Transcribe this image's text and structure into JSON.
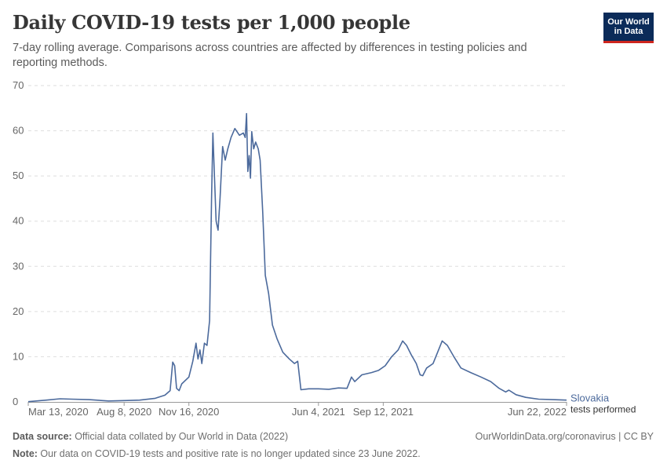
{
  "header": {
    "title": "Daily COVID-19 tests per 1,000 people",
    "subtitle": "7-day rolling average. Comparisons across countries are affected by differences in testing policies and reporting methods."
  },
  "logo": {
    "line1": "Our World",
    "line2": "in Data"
  },
  "footer": {
    "source_label": "Data source:",
    "source_text": " Official data collated by Our World in Data (2022)",
    "url": "OurWorldinData.org/coronavirus | CC BY",
    "note_label": "Note:",
    "note_text": " Our data on COVID-19 tests and positive rate is no longer updated since 23 June 2022."
  },
  "chart_data": {
    "type": "line",
    "title": "Daily COVID-19 tests per 1,000 people",
    "ylim": [
      0,
      70
    ],
    "y_ticks": [
      0,
      10,
      20,
      30,
      40,
      50,
      60,
      70
    ],
    "x_ticks": [
      {
        "date": "2020-03-13",
        "label": "Mar 13, 2020"
      },
      {
        "date": "2020-08-08",
        "label": "Aug 8, 2020"
      },
      {
        "date": "2020-11-16",
        "label": "Nov 16, 2020"
      },
      {
        "date": "2021-06-04",
        "label": "Jun 4, 2021"
      },
      {
        "date": "2021-09-12",
        "label": "Sep 12, 2021"
      },
      {
        "date": "2022-06-22",
        "label": "Jun 22, 2022"
      }
    ],
    "xlim": [
      "2020-03-13",
      "2022-06-22"
    ],
    "grid": "horizontal dashed",
    "colors": {
      "series": "#4c6a9c",
      "grid": "#dddddd",
      "axis": "#666666"
    },
    "series": [
      {
        "name": "Slovakia",
        "label_sub": "tests performed",
        "points": [
          [
            "2020-03-13",
            0.05
          ],
          [
            "2020-04-10",
            0.4
          ],
          [
            "2020-05-01",
            0.7
          ],
          [
            "2020-05-20",
            0.6
          ],
          [
            "2020-06-15",
            0.5
          ],
          [
            "2020-07-15",
            0.2
          ],
          [
            "2020-08-08",
            0.3
          ],
          [
            "2020-09-01",
            0.4
          ],
          [
            "2020-09-25",
            0.8
          ],
          [
            "2020-10-10",
            1.5
          ],
          [
            "2020-10-18",
            2.5
          ],
          [
            "2020-10-22",
            8.8
          ],
          [
            "2020-10-25",
            8.0
          ],
          [
            "2020-10-28",
            3.0
          ],
          [
            "2020-11-01",
            2.5
          ],
          [
            "2020-11-05",
            4.0
          ],
          [
            "2020-11-16",
            5.5
          ],
          [
            "2020-11-22",
            9.0
          ],
          [
            "2020-11-27",
            13.0
          ],
          [
            "2020-11-30",
            9.5
          ],
          [
            "2020-12-03",
            11.5
          ],
          [
            "2020-12-06",
            8.5
          ],
          [
            "2020-12-10",
            13.0
          ],
          [
            "2020-12-14",
            12.5
          ],
          [
            "2020-12-18",
            18.0
          ],
          [
            "2020-12-21",
            45.0
          ],
          [
            "2020-12-23",
            59.5
          ],
          [
            "2020-12-26",
            48.0
          ],
          [
            "2020-12-28",
            40.0
          ],
          [
            "2020-12-31",
            38.0
          ],
          [
            "2021-01-03",
            45.0
          ],
          [
            "2021-01-07",
            56.5
          ],
          [
            "2021-01-11",
            53.5
          ],
          [
            "2021-01-15",
            56.0
          ],
          [
            "2021-01-20",
            58.5
          ],
          [
            "2021-01-26",
            60.5
          ],
          [
            "2021-02-02",
            59.0
          ],
          [
            "2021-02-08",
            59.5
          ],
          [
            "2021-02-11",
            58.5
          ],
          [
            "2021-02-13",
            63.8
          ],
          [
            "2021-02-15",
            51.0
          ],
          [
            "2021-02-17",
            54.5
          ],
          [
            "2021-02-19",
            49.5
          ],
          [
            "2021-02-21",
            59.8
          ],
          [
            "2021-02-24",
            56.0
          ],
          [
            "2021-02-27",
            57.5
          ],
          [
            "2021-03-03",
            56.0
          ],
          [
            "2021-03-06",
            53.5
          ],
          [
            "2021-03-10",
            42.0
          ],
          [
            "2021-03-14",
            28.0
          ],
          [
            "2021-03-19",
            24.0
          ],
          [
            "2021-03-25",
            17.0
          ],
          [
            "2021-04-01",
            14.0
          ],
          [
            "2021-04-10",
            11.0
          ],
          [
            "2021-04-20",
            9.5
          ],
          [
            "2021-04-28",
            8.5
          ],
          [
            "2021-05-03",
            9.0
          ],
          [
            "2021-05-08",
            2.7
          ],
          [
            "2021-05-20",
            2.9
          ],
          [
            "2021-06-04",
            2.9
          ],
          [
            "2021-06-20",
            2.8
          ],
          [
            "2021-07-05",
            3.1
          ],
          [
            "2021-07-18",
            3.0
          ],
          [
            "2021-07-25",
            5.5
          ],
          [
            "2021-07-30",
            4.5
          ],
          [
            "2021-08-10",
            6.0
          ],
          [
            "2021-08-25",
            6.5
          ],
          [
            "2021-09-05",
            7.0
          ],
          [
            "2021-09-15",
            8.0
          ],
          [
            "2021-09-25",
            10.0
          ],
          [
            "2021-10-05",
            11.5
          ],
          [
            "2021-10-12",
            13.5
          ],
          [
            "2021-10-18",
            12.5
          ],
          [
            "2021-10-25",
            10.5
          ],
          [
            "2021-11-02",
            8.5
          ],
          [
            "2021-11-08",
            6.0
          ],
          [
            "2021-11-12",
            5.8
          ],
          [
            "2021-11-18",
            7.5
          ],
          [
            "2021-11-28",
            8.5
          ],
          [
            "2021-12-05",
            11.0
          ],
          [
            "2021-12-12",
            13.5
          ],
          [
            "2021-12-20",
            12.5
          ],
          [
            "2021-12-30",
            10.0
          ],
          [
            "2022-01-10",
            7.5
          ],
          [
            "2022-01-25",
            6.5
          ],
          [
            "2022-02-10",
            5.5
          ],
          [
            "2022-02-25",
            4.5
          ],
          [
            "2022-03-10",
            3.0
          ],
          [
            "2022-03-20",
            2.2
          ],
          [
            "2022-03-25",
            2.6
          ],
          [
            "2022-04-05",
            1.6
          ],
          [
            "2022-04-20",
            1.0
          ],
          [
            "2022-05-10",
            0.6
          ],
          [
            "2022-06-01",
            0.5
          ],
          [
            "2022-06-22",
            0.4
          ]
        ]
      }
    ]
  }
}
